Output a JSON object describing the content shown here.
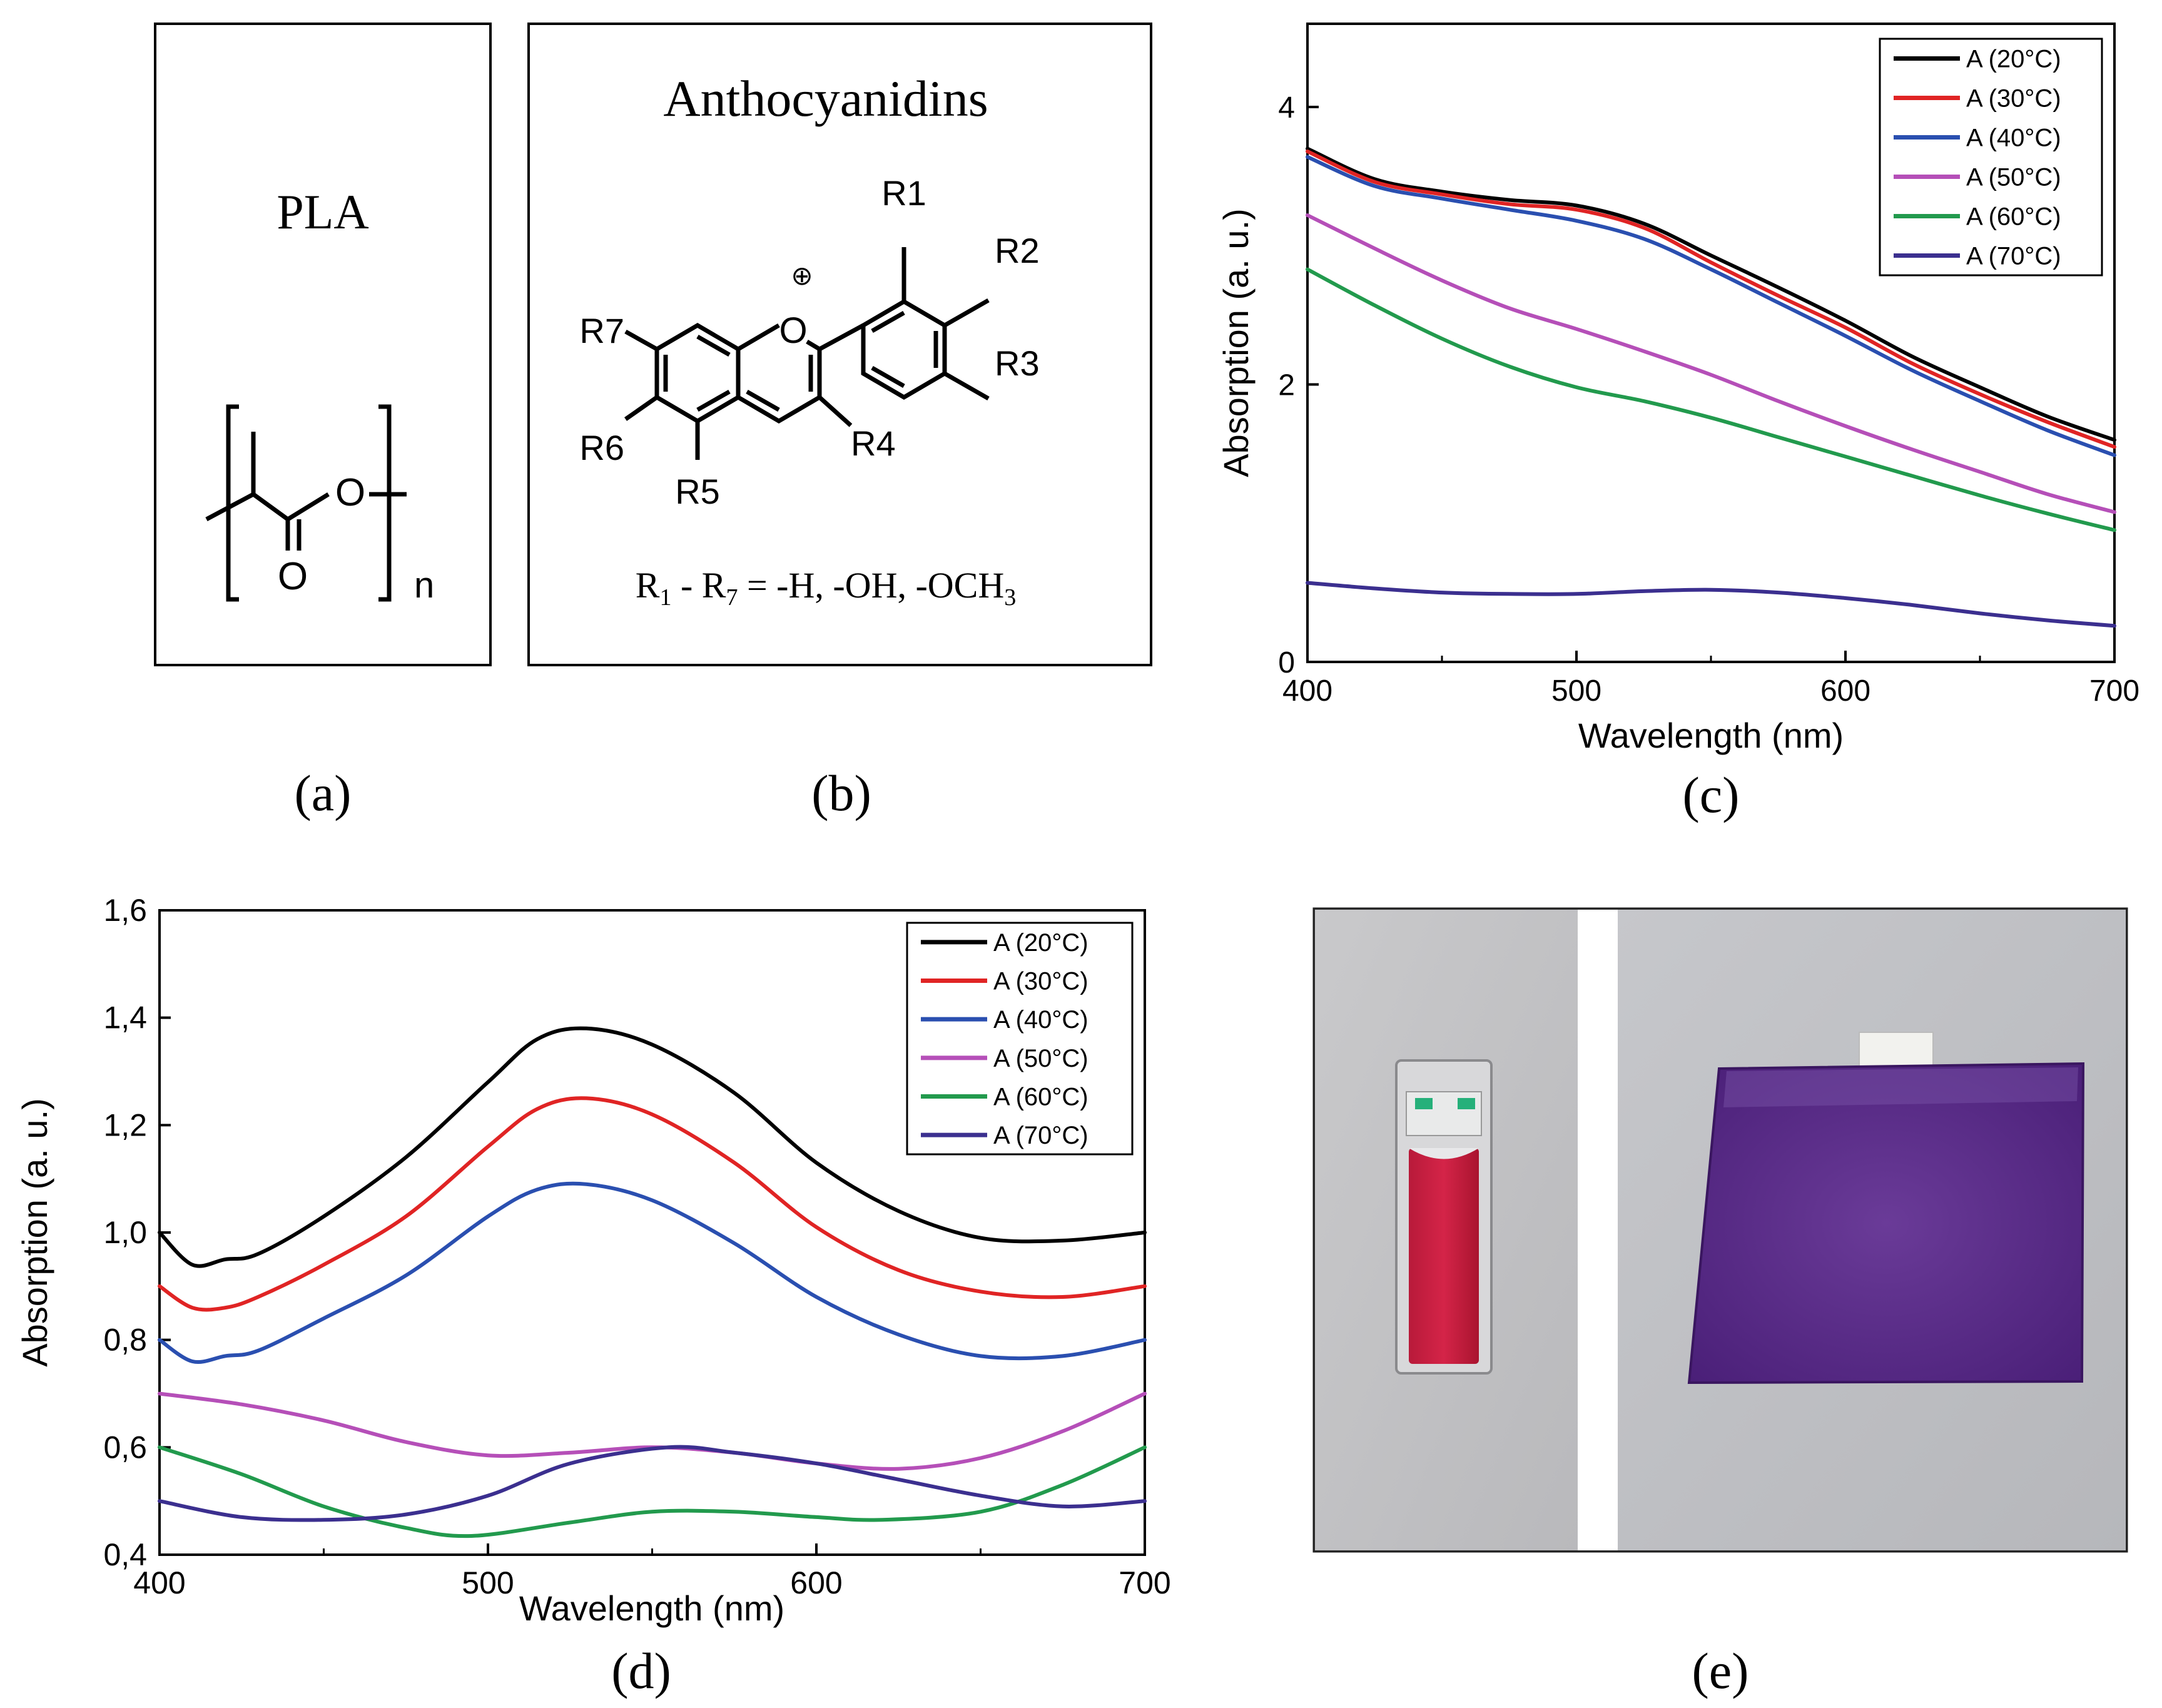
{
  "panels": {
    "a": {
      "title": "PLA",
      "caption": "(a)",
      "structure": {
        "carbonyl_o": "O",
        "ester_o": "O",
        "repeat": "n"
      }
    },
    "b": {
      "title": "Anthocyanidins",
      "caption": "(b)",
      "structure": {
        "charge": "⊕",
        "ring_o": "O",
        "r1": "R1",
        "r2": "R2",
        "r3": "R3",
        "r4": "R4",
        "r5": "R5",
        "r6": "R6",
        "r7": "R7"
      },
      "formula": {
        "r_start": "R",
        "r_start_sub": "1",
        "dash": " - ",
        "r_end": "R",
        "r_end_sub": "7",
        "groups": " = -H, -OH, -OCH",
        "ch3_sub": "3"
      }
    },
    "c": {
      "caption": "(c)"
    },
    "d": {
      "caption": "(d)"
    },
    "e": {
      "caption": "(e)",
      "photo": "cuvette with red anthocyanin solution and purple PLA film"
    }
  },
  "colors": {
    "s20": "#000000",
    "s30": "#e02424",
    "s40": "#2a4fb0",
    "s50": "#b54fb8",
    "s60": "#229a4d",
    "s70": "#3b2f8f"
  },
  "chart_data": [
    {
      "id": "c",
      "type": "line",
      "xlabel": "Wavelength (nm)",
      "ylabel": "Absorption (a. u.)",
      "xlim": [
        400,
        700
      ],
      "ylim": [
        0,
        4.6
      ],
      "xticks": [
        400,
        500,
        600,
        700
      ],
      "xtick_labels": [
        "400",
        "500",
        "600",
        "700"
      ],
      "yticks": [
        0,
        2,
        4
      ],
      "ytick_labels": [
        "0",
        "2",
        "4"
      ],
      "legend_position": "top-right",
      "series": [
        {
          "name": "A (20°C)",
          "color_key": "s20",
          "x": [
            400,
            425,
            450,
            475,
            500,
            525,
            550,
            575,
            600,
            625,
            650,
            675,
            700
          ],
          "y": [
            3.7,
            3.48,
            3.39,
            3.33,
            3.29,
            3.16,
            2.93,
            2.7,
            2.46,
            2.2,
            1.98,
            1.77,
            1.6
          ]
        },
        {
          "name": "A (30°C)",
          "color_key": "s30",
          "x": [
            400,
            425,
            450,
            475,
            500,
            525,
            550,
            575,
            600,
            625,
            650,
            675,
            700
          ],
          "y": [
            3.68,
            3.46,
            3.37,
            3.3,
            3.26,
            3.13,
            2.88,
            2.64,
            2.41,
            2.15,
            1.93,
            1.73,
            1.55
          ]
        },
        {
          "name": "A (40°C)",
          "color_key": "s40",
          "x": [
            400,
            425,
            450,
            475,
            500,
            525,
            550,
            575,
            600,
            625,
            650,
            675,
            700
          ],
          "y": [
            3.64,
            3.43,
            3.34,
            3.26,
            3.18,
            3.05,
            2.83,
            2.59,
            2.35,
            2.1,
            1.88,
            1.67,
            1.49
          ]
        },
        {
          "name": "A (50°C)",
          "color_key": "s50",
          "x": [
            400,
            425,
            450,
            475,
            500,
            525,
            550,
            575,
            600,
            625,
            650,
            675,
            700
          ],
          "y": [
            3.22,
            2.98,
            2.75,
            2.55,
            2.4,
            2.24,
            2.07,
            1.88,
            1.7,
            1.53,
            1.37,
            1.21,
            1.08
          ]
        },
        {
          "name": "A (60°C)",
          "color_key": "s60",
          "x": [
            400,
            425,
            450,
            475,
            500,
            525,
            550,
            575,
            600,
            625,
            650,
            675,
            700
          ],
          "y": [
            2.83,
            2.57,
            2.33,
            2.13,
            1.98,
            1.88,
            1.76,
            1.62,
            1.48,
            1.34,
            1.2,
            1.07,
            0.95
          ]
        },
        {
          "name": "A (70°C)",
          "color_key": "s70",
          "x": [
            400,
            425,
            450,
            475,
            500,
            525,
            550,
            575,
            600,
            625,
            650,
            675,
            700
          ],
          "y": [
            0.57,
            0.53,
            0.5,
            0.49,
            0.49,
            0.51,
            0.52,
            0.5,
            0.46,
            0.41,
            0.35,
            0.3,
            0.26
          ]
        }
      ]
    },
    {
      "id": "d",
      "type": "line",
      "xlabel": "Wavelength (nm)",
      "ylabel": "Absorption (a. u.)",
      "xlim": [
        400,
        700
      ],
      "ylim": [
        0.4,
        1.6
      ],
      "xticks": [
        400,
        500,
        600,
        700
      ],
      "xtick_labels": [
        "400",
        "500",
        "600",
        "700"
      ],
      "yticks": [
        0.4,
        0.6,
        0.8,
        1.0,
        1.2,
        1.4,
        1.6
      ],
      "ytick_labels": [
        "0,4",
        "0,6",
        "0,8",
        "1,0",
        "1,2",
        "1,4",
        "1,6"
      ],
      "legend_position": "top-right",
      "series": [
        {
          "name": "A (20°C)",
          "color_key": "s20",
          "x": [
            400,
            410,
            420,
            430,
            450,
            475,
            500,
            515,
            530,
            550,
            575,
            600,
            625,
            650,
            675,
            700
          ],
          "y": [
            1.0,
            0.94,
            0.95,
            0.96,
            1.03,
            1.14,
            1.28,
            1.36,
            1.38,
            1.35,
            1.26,
            1.13,
            1.04,
            0.99,
            0.985,
            1.0
          ]
        },
        {
          "name": "A (30°C)",
          "color_key": "s30",
          "x": [
            400,
            410,
            420,
            430,
            450,
            475,
            500,
            515,
            530,
            550,
            575,
            600,
            625,
            650,
            675,
            700
          ],
          "y": [
            0.9,
            0.86,
            0.86,
            0.88,
            0.94,
            1.03,
            1.16,
            1.23,
            1.25,
            1.22,
            1.13,
            1.01,
            0.93,
            0.89,
            0.88,
            0.9
          ]
        },
        {
          "name": "A (40°C)",
          "color_key": "s40",
          "x": [
            400,
            410,
            420,
            430,
            450,
            475,
            500,
            515,
            530,
            550,
            575,
            600,
            625,
            650,
            675,
            700
          ],
          "y": [
            0.8,
            0.76,
            0.77,
            0.78,
            0.84,
            0.92,
            1.03,
            1.08,
            1.09,
            1.06,
            0.98,
            0.88,
            0.81,
            0.77,
            0.77,
            0.8
          ]
        },
        {
          "name": "A (50°C)",
          "color_key": "s50",
          "x": [
            400,
            425,
            450,
            475,
            500,
            525,
            550,
            575,
            600,
            625,
            650,
            675,
            700
          ],
          "y": [
            0.7,
            0.68,
            0.65,
            0.61,
            0.585,
            0.59,
            0.6,
            0.59,
            0.57,
            0.56,
            0.58,
            0.63,
            0.7
          ]
        },
        {
          "name": "A (60°C)",
          "color_key": "s60",
          "x": [
            400,
            425,
            450,
            475,
            495,
            525,
            550,
            575,
            600,
            620,
            650,
            675,
            700
          ],
          "y": [
            0.6,
            0.55,
            0.49,
            0.45,
            0.435,
            0.46,
            0.48,
            0.48,
            0.47,
            0.465,
            0.48,
            0.53,
            0.6
          ]
        },
        {
          "name": "A (70°C)",
          "color_key": "s70",
          "x": [
            400,
            425,
            450,
            475,
            500,
            525,
            555,
            575,
            600,
            625,
            650,
            675,
            700
          ],
          "y": [
            0.5,
            0.47,
            0.465,
            0.475,
            0.51,
            0.57,
            0.6,
            0.59,
            0.57,
            0.54,
            0.51,
            0.49,
            0.5
          ]
        }
      ]
    }
  ]
}
